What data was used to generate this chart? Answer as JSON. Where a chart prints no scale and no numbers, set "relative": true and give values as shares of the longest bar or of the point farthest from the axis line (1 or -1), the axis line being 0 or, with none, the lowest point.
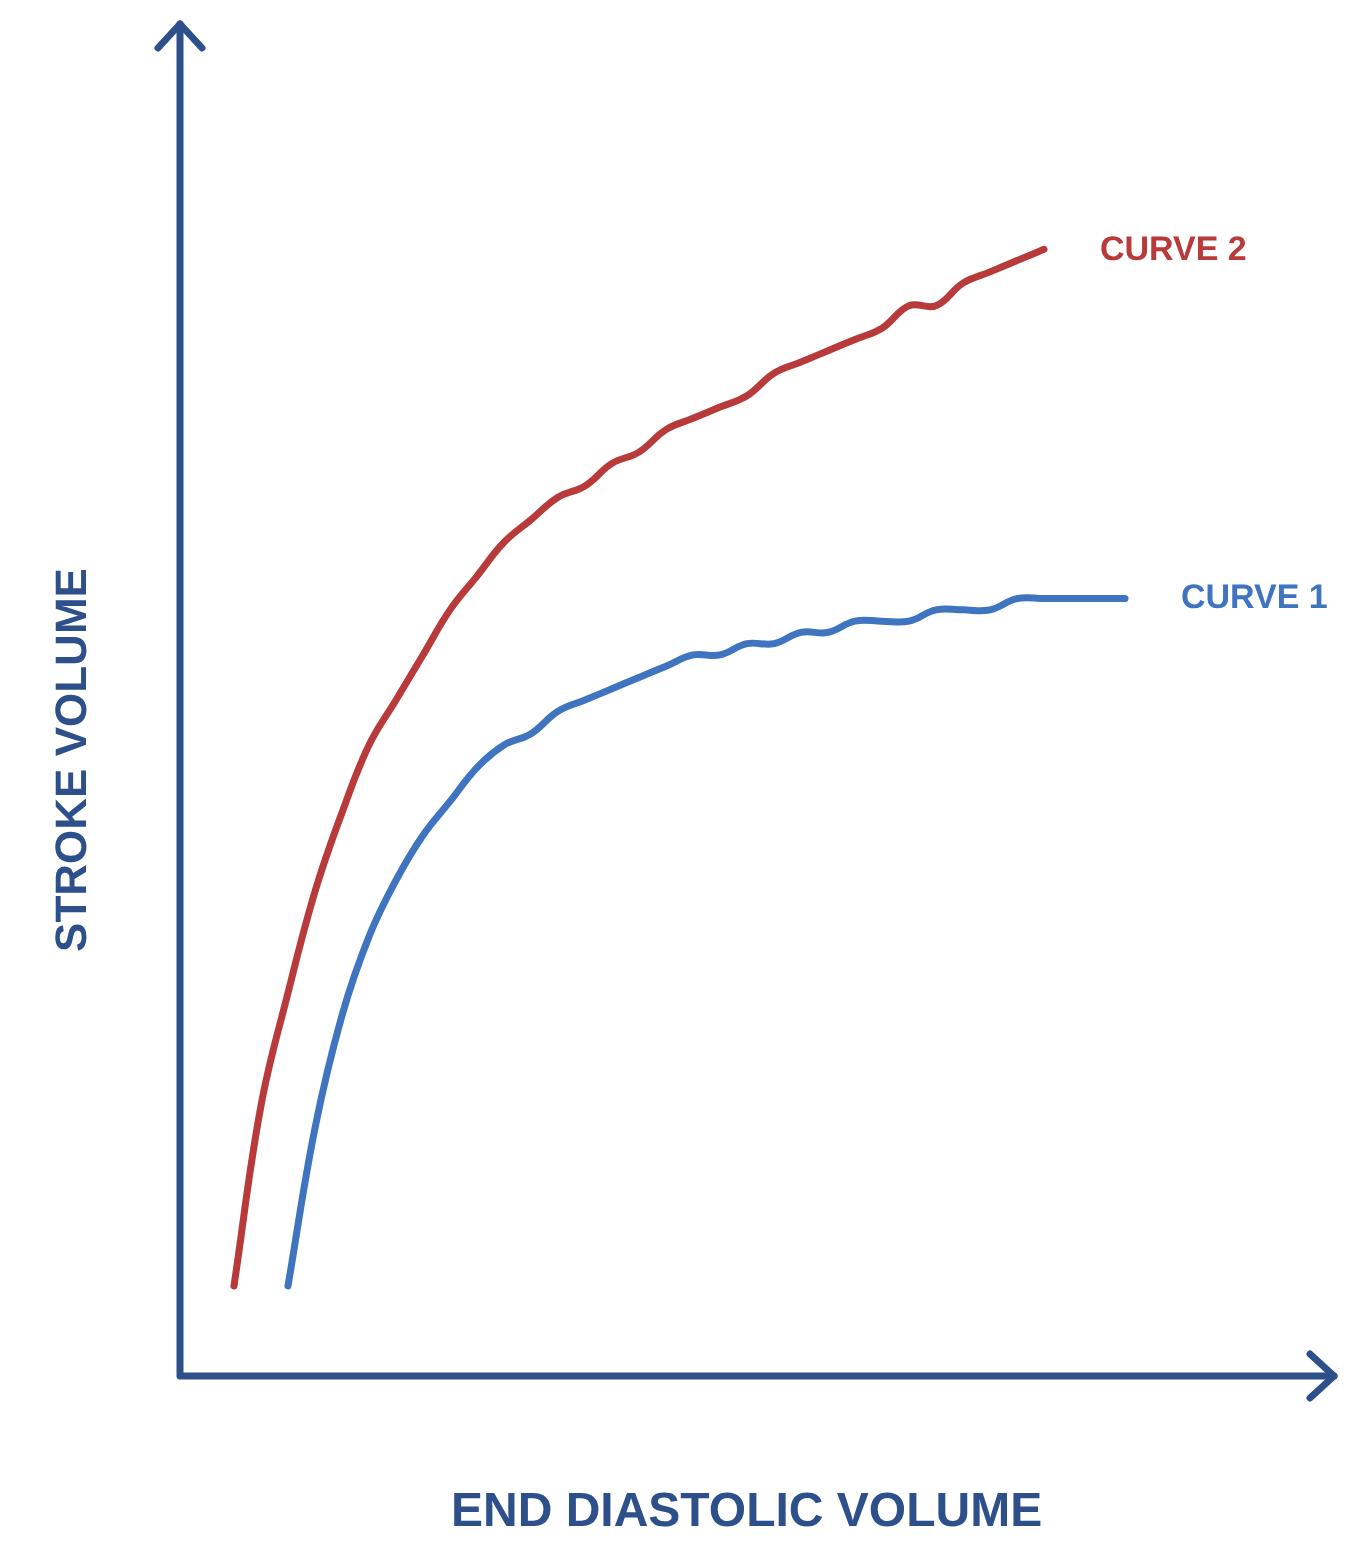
{
  "chart_data": {
    "type": "line",
    "xlabel": "END DIASTOLIC VOLUME",
    "ylabel": "STROKE VOLUME",
    "relative": true,
    "marker": "none",
    "line_style": "solid",
    "categories": [
      null,
      null,
      null,
      null,
      null,
      null,
      null,
      null,
      null,
      null,
      null,
      null,
      null,
      null,
      null,
      null,
      null,
      null,
      null,
      null,
      null,
      null,
      null,
      null,
      null,
      null,
      null,
      null,
      null,
      null,
      null,
      null,
      null,
      null,
      null,
      null,
      null,
      null,
      null,
      null,
      null,
      null,
      null
    ],
    "series": [
      {
        "name": "CURVE 2",
        "color": "#b83a3a",
        "values": [
          null,
          null,
          0.08,
          0.24,
          0.34,
          0.43,
          0.5,
          0.56,
          0.6,
          0.64,
          0.68,
          0.71,
          0.74,
          0.76,
          0.78,
          0.79,
          0.81,
          0.82,
          0.84,
          0.85,
          0.86,
          0.87,
          0.89,
          0.9,
          0.91,
          0.92,
          0.93,
          0.95,
          0.95,
          0.97,
          0.98,
          0.99,
          1,
          null,
          null,
          null,
          null,
          null,
          null,
          null,
          null,
          null,
          null
        ]
      },
      {
        "name": "CURVE 1",
        "color": "#3f74c0",
        "values": [
          null,
          null,
          null,
          null,
          0.08,
          0.22,
          0.32,
          0.39,
          0.44,
          0.48,
          0.51,
          0.54,
          0.56,
          0.57,
          0.59,
          0.6,
          0.61,
          0.62,
          0.63,
          0.64,
          0.64,
          0.65,
          0.65,
          0.66,
          0.66,
          0.67,
          0.67,
          0.67,
          0.68,
          0.68,
          0.68,
          0.69,
          0.69,
          0.69,
          0.69,
          0.69,
          null,
          null,
          null,
          null,
          null,
          null,
          null
        ]
      }
    ]
  }
}
